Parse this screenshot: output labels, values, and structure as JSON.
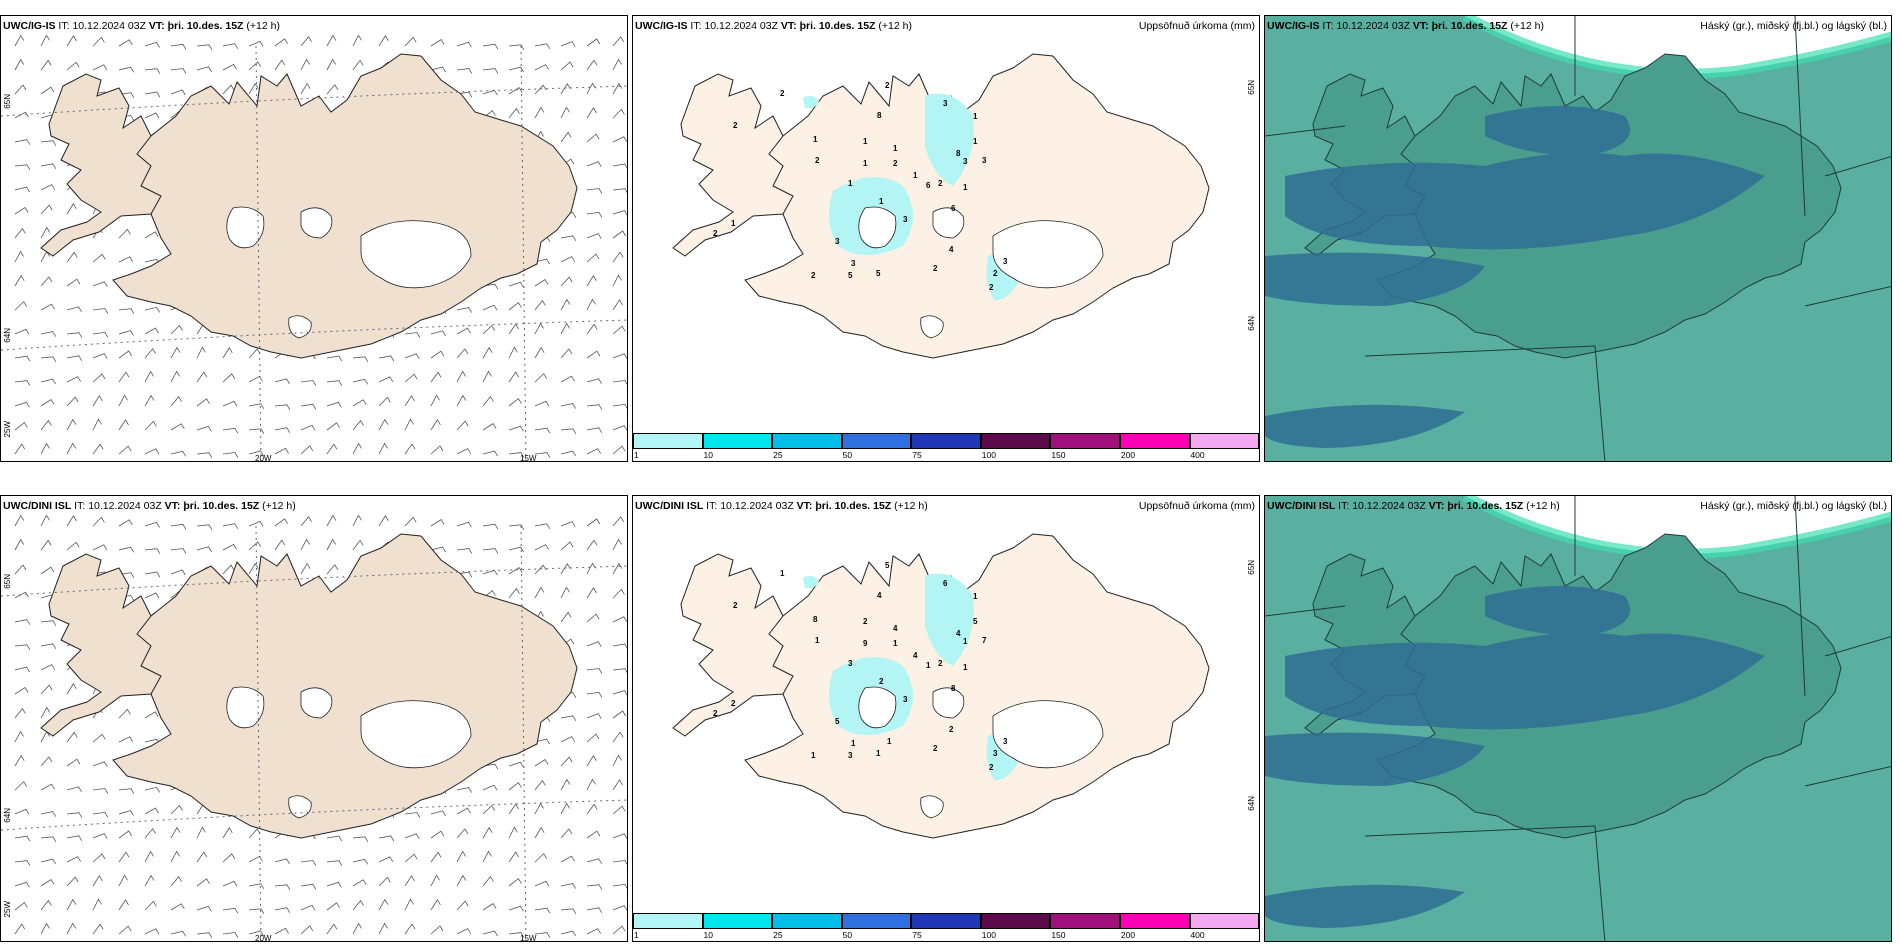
{
  "rows": [
    {
      "model": "UWC/IG-IS",
      "it_label": "IT:",
      "it_value": "10.12.2024 03Z",
      "vt_label": "VT:",
      "vt_value": "þri. 10.des. 15Z",
      "lead": "(+12 h)",
      "precip_values": [
        "2",
        "2",
        "1",
        "2",
        "2",
        "8",
        "1",
        "1",
        "1",
        "1",
        "1",
        "1",
        "2",
        "2",
        "3",
        "1",
        "8",
        "6",
        "3",
        "1",
        "2",
        "3",
        "3",
        "3",
        "4",
        "5",
        "5",
        "2",
        "2",
        "3",
        "2",
        "1",
        "1",
        "6",
        "3",
        "2"
      ]
    },
    {
      "model": "UWC/DINI ISL",
      "it_label": "IT:",
      "it_value": "10.12.2024 03Z",
      "vt_label": "VT:",
      "vt_value": "þri. 10.des. 15Z",
      "lead": "(+12 h)",
      "precip_values": [
        "2",
        "2",
        "2",
        "1",
        "1",
        "4",
        "9",
        "4",
        "4",
        "3",
        "2",
        "8",
        "1",
        "5",
        "6",
        "5",
        "4",
        "8",
        "7",
        "1",
        "2",
        "1",
        "5",
        "3",
        "2",
        "3",
        "1",
        "1",
        "2",
        "3",
        "2",
        "1",
        "2",
        "1",
        "1",
        "3",
        "1"
      ]
    }
  ],
  "precip_title": "Uppsöfnuð úrkoma (mm)",
  "cloud_title": "Háský (gr.), miðský (fj.bl.) og lágský (bl.)",
  "legend": {
    "ticks": [
      "1",
      "10",
      "25",
      "50",
      "75",
      "100",
      "150",
      "200",
      "400"
    ],
    "colors": [
      "#b3f5f5",
      "#00e6ee",
      "#00bfe8",
      "#2f6fe0",
      "#2236b8",
      "#5c0a4a",
      "#a0107a",
      "#ff00b4",
      "#f4a8f0"
    ]
  },
  "axes": {
    "lat65": "65N",
    "lat64": "64N",
    "lon25": "25W",
    "lon20": "20W",
    "lon15": "15W",
    "lat65_b": "65N",
    "lat64_b": "64N"
  },
  "colors": {
    "land": "#efe0d0",
    "precip_land": "#fdf0e4",
    "cloud_bg": "#5ab0a0",
    "cloud_dark": "#2f6e94",
    "outline": "#000000"
  }
}
